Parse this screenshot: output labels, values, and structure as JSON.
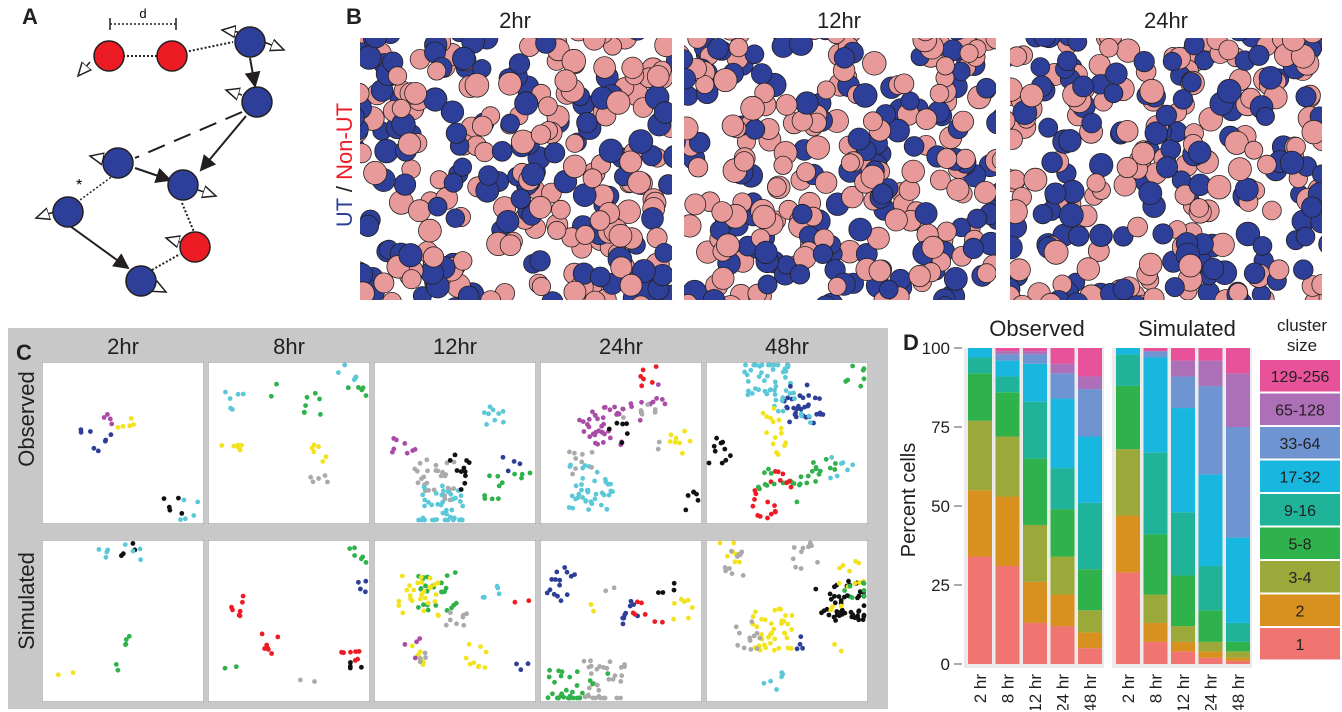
{
  "figure": {
    "panels": {
      "A": "A",
      "B": "B",
      "C": "C",
      "D": "D"
    },
    "panel_a": {
      "distance_label": "d",
      "asterisk": "*"
    },
    "panel_b": {
      "times": [
        "2hr",
        "12hr",
        "24hr"
      ],
      "ylabel_ut": "UT",
      "ylabel_sep": " / ",
      "ylabel_nonut": "Non-UT",
      "colors": {
        "ut": "#2e3f99",
        "nonut": "#e89a9a"
      }
    },
    "panel_c": {
      "times": [
        "2hr",
        "8hr",
        "12hr",
        "24hr",
        "48hr"
      ],
      "rows": [
        "Observed",
        "Simulated"
      ]
    },
    "panel_d": {
      "legend_title_1": "cluster",
      "legend_title_2": "size"
    }
  },
  "chart_data": {
    "type": "bar",
    "stacked": true,
    "ylabel": "Percent cells",
    "ylim": [
      0,
      100
    ],
    "yticks": [
      0,
      25,
      50,
      75,
      100
    ],
    "facets": [
      "Observed",
      "Simulated"
    ],
    "categories": [
      "2 hr",
      "8 hr",
      "12 hr",
      "24 hr",
      "48 hr"
    ],
    "series": [
      {
        "name": "1",
        "color": "#f07470",
        "observed": [
          34,
          31,
          13,
          12,
          5
        ],
        "simulated": [
          29,
          7,
          4,
          2,
          1
        ]
      },
      {
        "name": "2",
        "color": "#d8901f",
        "observed": [
          21,
          22,
          13,
          10,
          5
        ],
        "simulated": [
          18,
          6,
          3,
          2,
          1
        ]
      },
      {
        "name": "3-4",
        "color": "#9aa93a",
        "observed": [
          22,
          19,
          18,
          12,
          7
        ],
        "simulated": [
          21,
          9,
          5,
          3,
          2
        ]
      },
      {
        "name": "5-8",
        "color": "#2fb24b",
        "observed": [
          15,
          14,
          21,
          15,
          13
        ],
        "simulated": [
          20,
          19,
          16,
          10,
          3
        ]
      },
      {
        "name": "9-16",
        "color": "#1fb49a",
        "observed": [
          5,
          5,
          18,
          13,
          21
        ],
        "simulated": [
          10,
          26,
          20,
          14,
          6
        ]
      },
      {
        "name": "17-32",
        "color": "#17b7e0",
        "observed": [
          3,
          5,
          12,
          22,
          21
        ],
        "simulated": [
          2,
          30,
          33,
          29,
          27
        ]
      },
      {
        "name": "33-64",
        "color": "#6e94d2",
        "observed": [
          0,
          2,
          3,
          8,
          15
        ],
        "simulated": [
          0,
          2,
          10,
          28,
          35
        ]
      },
      {
        "name": "65-128",
        "color": "#ad70b8",
        "observed": [
          0,
          1,
          1,
          3,
          4
        ],
        "simulated": [
          0,
          0,
          5,
          8,
          17
        ]
      },
      {
        "name": "129-256",
        "color": "#e7529a",
        "observed": [
          0,
          1,
          1,
          5,
          9
        ],
        "simulated": [
          0,
          1,
          4,
          4,
          8
        ]
      }
    ]
  }
}
